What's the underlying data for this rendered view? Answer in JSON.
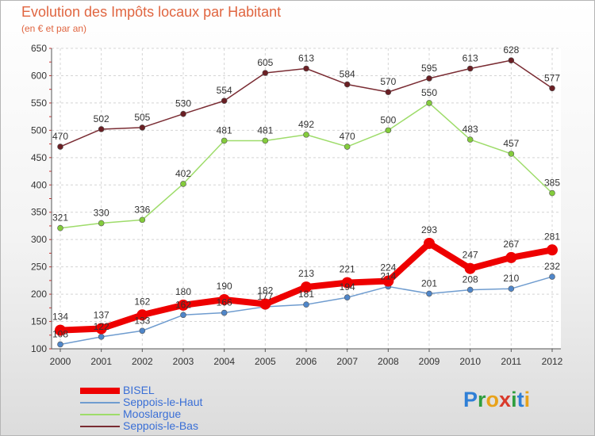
{
  "header": {
    "title": "Evolution des Impôts locaux par Habitant",
    "subtitle": "(en € et par an)"
  },
  "logo": {
    "text": "Proxiti",
    "letters": [
      {
        "char": "P",
        "color": "#2f7fd6"
      },
      {
        "char": "r",
        "color": "#2f9e3f"
      },
      {
        "char": "o",
        "color": "#e8a21a"
      },
      {
        "char": "x",
        "color": "#d93a2b"
      },
      {
        "char": "i",
        "color": "#2f9e3f"
      },
      {
        "char": "t",
        "color": "#2f7fd6"
      },
      {
        "char": "i",
        "color": "#e8a21a"
      }
    ]
  },
  "chart_data": {
    "type": "line",
    "title": "Evolution des Impôts locaux par Habitant",
    "subtitle": "(en € et par an)",
    "xlabel": "",
    "ylabel": "",
    "x": [
      "2000",
      "2001",
      "2002",
      "2003",
      "2004",
      "2005",
      "2006",
      "2007",
      "2008",
      "2009",
      "2010",
      "2011",
      "2012"
    ],
    "ylim": [
      100,
      650
    ],
    "yticks": [
      100,
      150,
      200,
      250,
      300,
      350,
      400,
      450,
      500,
      550,
      600,
      650
    ],
    "grid": true,
    "legend_position": "bottom-left",
    "series": [
      {
        "name": "BISEL",
        "color": "#ee0000",
        "point_color": "#ee0000",
        "values": [
          134,
          137,
          162,
          180,
          190,
          182,
          213,
          221,
          224,
          293,
          247,
          267,
          281
        ]
      },
      {
        "name": "Seppois-le-Haut",
        "color": "#6f9ccf",
        "point_color": "#4f86c9",
        "values": [
          108,
          122,
          133,
          162,
          166,
          177,
          181,
          194,
          214,
          201,
          208,
          210,
          232
        ]
      },
      {
        "name": "Mooslargue",
        "color": "#9edc6a",
        "point_color": "#84cc3c",
        "values": [
          321,
          330,
          336,
          402,
          481,
          481,
          492,
          470,
          500,
          550,
          483,
          457,
          385
        ]
      },
      {
        "name": "Seppois-le-Bas",
        "color": "#7a2c33",
        "point_color": "#6a1f24",
        "values": [
          470,
          502,
          505,
          530,
          554,
          605,
          613,
          584,
          570,
          595,
          613,
          628,
          577
        ]
      }
    ],
    "data_labels": [
      [
        "134",
        "137",
        "162",
        "180",
        "190",
        "182",
        "213",
        "221",
        "224",
        "293",
        "247",
        "267",
        "281"
      ],
      [
        "108",
        "122",
        "133",
        "162",
        "166",
        "177",
        "181",
        "194",
        "214",
        "201",
        "208",
        "210",
        "232"
      ],
      [
        "321",
        "330",
        "336",
        "402",
        "481",
        "481",
        "492",
        "470",
        "500",
        "550",
        "483",
        "457",
        "385"
      ],
      [
        "470",
        "502",
        "505",
        "530",
        "554",
        "605",
        "613",
        "584",
        "570",
        "595",
        "613",
        "628",
        "577"
      ]
    ]
  }
}
